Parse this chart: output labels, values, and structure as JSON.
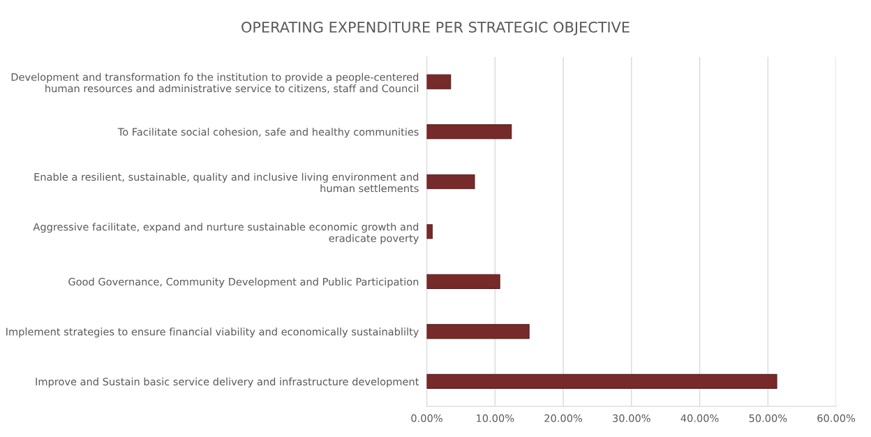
{
  "chart_data": {
    "type": "bar",
    "orientation": "horizontal",
    "title": "OPERATING EXPENDITURE PER STRATEGIC OBJECTIVE",
    "categories": [
      "Development and transformation fo the institution to provide a people-centered\nhuman resources and administrative service to citizens, staff and Council",
      "To Facilitate social cohesion, safe and healthy communities",
      "Enable a resilient, sustainable, quality and inclusive living environment and\nhuman settlements",
      "Aggressive facilitate, expand and nurture sustainable economic growth and\neradicate poverty",
      "Good Governance, Community Development and Public Participation",
      "Implement strategies to ensure financial viability and economically sustainablilty",
      "Improve and Sustain basic service delivery and infrastructure development"
    ],
    "values": [
      3.5,
      12.4,
      7.0,
      0.8,
      10.7,
      15.0,
      51.3
    ],
    "color": "#772a2a",
    "xlim": [
      0,
      60
    ],
    "xticks": [
      {
        "value": 0,
        "label": "0.00%"
      },
      {
        "value": 10,
        "label": "10.00%"
      },
      {
        "value": 20,
        "label": "20.00%"
      },
      {
        "value": 30,
        "label": "30.00%"
      },
      {
        "value": 40,
        "label": "40.00%"
      },
      {
        "value": 50,
        "label": "50.00%"
      },
      {
        "value": 60,
        "label": "60.00%"
      }
    ],
    "grid": "x"
  }
}
